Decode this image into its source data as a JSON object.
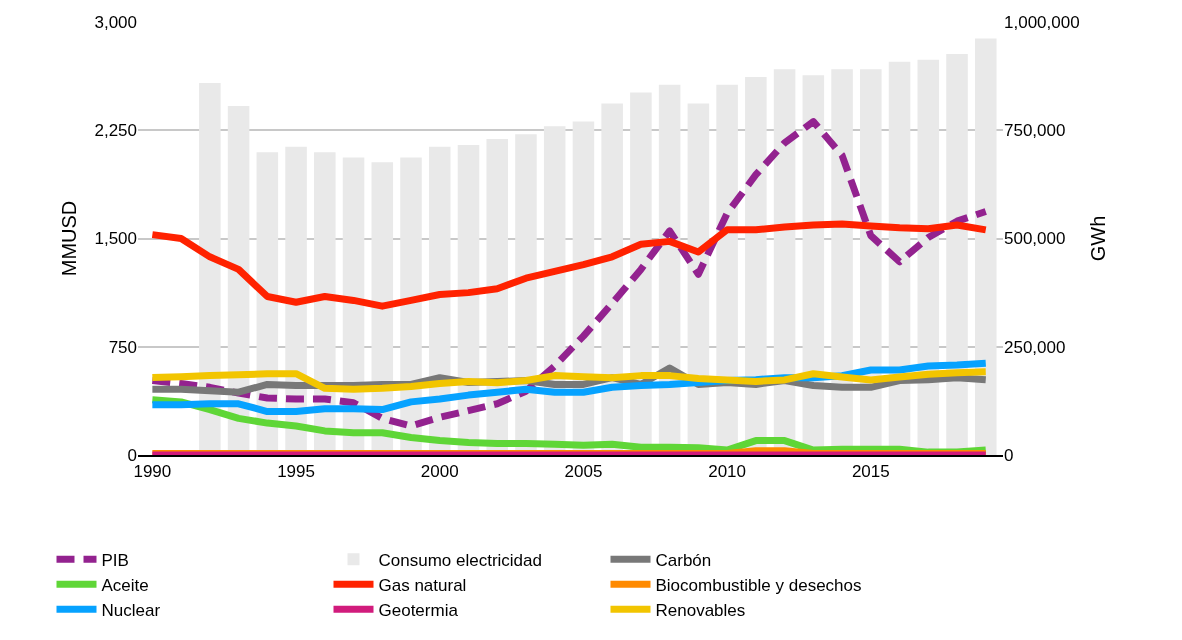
{
  "chart_data": {
    "type": "line",
    "ylabel": "MMUSD",
    "y2label": "GWh",
    "x": [
      1990,
      1991,
      1992,
      1993,
      1994,
      1995,
      1996,
      1997,
      1998,
      1999,
      2000,
      2001,
      2002,
      2003,
      2004,
      2005,
      2006,
      2007,
      2008,
      2009,
      2010,
      2011,
      2012,
      2013,
      2014,
      2015,
      2016,
      2017,
      2018,
      2019
    ],
    "xlim": [
      1989.5,
      2019.6
    ],
    "xticks": [
      1990,
      1995,
      2000,
      2005,
      2010,
      2015
    ],
    "ylim": [
      0,
      3000
    ],
    "yticks": [
      {
        "value": 0,
        "label": "0"
      },
      {
        "value": 750,
        "label": "750"
      },
      {
        "value": 1500,
        "label": "1,500"
      },
      {
        "value": 2250,
        "label": "2,250"
      },
      {
        "value": 3000,
        "label": "3,000"
      }
    ],
    "y2lim": [
      0,
      1000000
    ],
    "y2ticks": [
      {
        "value": 0,
        "label": "0"
      },
      {
        "value": 250000,
        "label": "250,000"
      },
      {
        "value": 500000,
        "label": "500,000"
      },
      {
        "value": 750000,
        "label": "750,000"
      },
      {
        "value": 1000000,
        "label": "1,000,000"
      }
    ],
    "grid": "y",
    "legend": "bottom",
    "series": [
      {
        "name": "PIB",
        "color": "#93228f",
        "line_style": "dashed",
        "values": [
          516,
          495,
          469,
          429,
          395,
          388,
          388,
          362,
          254,
          201,
          261,
          308,
          355,
          442,
          616,
          824,
          1051,
          1286,
          1553,
          1252,
          1674,
          1942,
          2163,
          2310,
          2076,
          1520,
          1339,
          1507,
          1620,
          1687
        ]
      },
      {
        "name": "Consumo electricidad",
        "type": "bar",
        "axis": "y2",
        "color": "#e9e9e9",
        "values": [
          null,
          null,
          859000,
          806000,
          699000,
          712000,
          699000,
          687000,
          676000,
          687000,
          712000,
          716000,
          730000,
          741000,
          759000,
          770000,
          812000,
          837000,
          855000,
          812000,
          855000,
          873000,
          891000,
          877000,
          891000,
          891000,
          908000,
          913000,
          926000,
          962000
        ]
      },
      {
        "name": "Carbón",
        "color": "#787878",
        "values": [
          455,
          455,
          445,
          435,
          489,
          482,
          482,
          482,
          489,
          489,
          536,
          502,
          509,
          516,
          489,
          489,
          536,
          489,
          603,
          489,
          502,
          489,
          516,
          482,
          469,
          469,
          516,
          522,
          536,
          522
        ]
      },
      {
        "name": "Aceite",
        "color": "#5fd637",
        "values": [
          382,
          368,
          315,
          254,
          221,
          201,
          167,
          154,
          154,
          121,
          100,
          87,
          80,
          80,
          74,
          67,
          74,
          54,
          54,
          50,
          34,
          100,
          100,
          34,
          40,
          40,
          40,
          20,
          20,
          34
        ]
      },
      {
        "name": "Gas natural",
        "color": "#ff2200",
        "values": [
          1527,
          1500,
          1373,
          1286,
          1098,
          1058,
          1098,
          1071,
          1031,
          1071,
          1112,
          1125,
          1152,
          1225,
          1272,
          1319,
          1373,
          1460,
          1480,
          1406,
          1560,
          1560,
          1580,
          1594,
          1600,
          1587,
          1574,
          1567,
          1594,
          1560
        ]
      },
      {
        "name": "Biocombustible y desechos",
        "color": "#ff8a00",
        "values": [
          10,
          10,
          10,
          10,
          10,
          10,
          10,
          10,
          10,
          10,
          10,
          10,
          10,
          10,
          10,
          10,
          10,
          10,
          10,
          10,
          10,
          30,
          30,
          10,
          10,
          10,
          10,
          10,
          10,
          10
        ]
      },
      {
        "name": "Nuclear",
        "color": "#06a2ff",
        "values": [
          348,
          348,
          355,
          355,
          301,
          301,
          321,
          321,
          315,
          368,
          388,
          415,
          435,
          455,
          435,
          435,
          469,
          482,
          489,
          502,
          516,
          522,
          536,
          536,
          549,
          589,
          589,
          616,
          623,
          636
        ]
      },
      {
        "name": "Geotermia",
        "color": "#d11b7c",
        "values": [
          0,
          0,
          0,
          0,
          0,
          0,
          0,
          0,
          0,
          0,
          0,
          0,
          0,
          0,
          0,
          0,
          0,
          0,
          0,
          0,
          0,
          0,
          0,
          0,
          0,
          0,
          0,
          0,
          0,
          0
        ]
      },
      {
        "name": "Renovables",
        "color": "#f2c500",
        "values": [
          537,
          543,
          550,
          556,
          563,
          563,
          462,
          455,
          462,
          475,
          496,
          509,
          500,
          516,
          550,
          543,
          536,
          550,
          550,
          530,
          520,
          510,
          520,
          563,
          540,
          520,
          540,
          560,
          570,
          576
        ]
      }
    ]
  }
}
